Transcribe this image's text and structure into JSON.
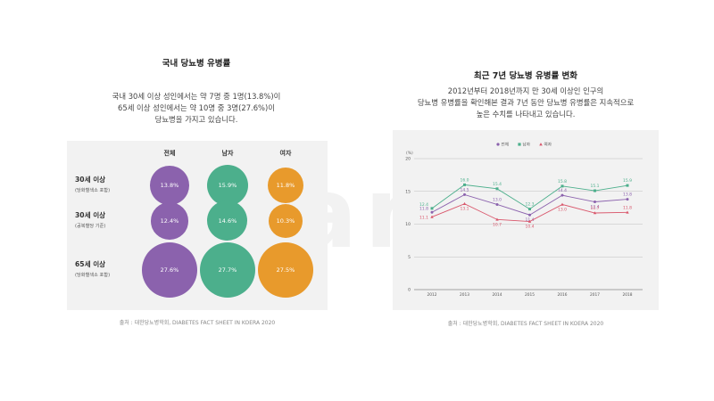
{
  "left": {
    "title": "국내 당뇨병 유병률",
    "desc": [
      "국내 30세 이상 성인에서는 약 7명 중 1명(13.8%)이",
      "65세 이상 성인에서는 약 10명 중 3명(27.6%)이",
      "당뇨병을 가지고 있습니다."
    ],
    "source": "출처 : 대한당뇨병학회, DIABETES FACT SHEET IN KOERA 2020"
  },
  "right": {
    "title": "최근 7년 당뇨병 유병률 변화",
    "desc": [
      "2012년부터 2018년까지 만 30세 이상인 인구의",
      "당뇨병 유병률을 확인해본 결과 7년 동안 당뇨병 유병률은 지속적으로",
      "높은 수치를 나타내고 있습니다."
    ],
    "source": "출처 : 대한당뇨병학회, DIABETES FACT SHEET IN KOERA 2020"
  },
  "watermark": "Fitamin",
  "colors": {
    "purple": "#8b62ad",
    "green": "#4caf8c",
    "orange": "#e89a2c",
    "red": "#d9566b"
  },
  "chart_data": [
    {
      "type": "bubble",
      "columns": [
        "전체",
        "남자",
        "여자"
      ],
      "rows": [
        {
          "label": "30세 이상",
          "sub": "(당화혈색소 포함)",
          "values": [
            13.8,
            15.9,
            11.8
          ]
        },
        {
          "label": "30세 이상",
          "sub": "(공복혈당 기준)",
          "values": [
            12.4,
            14.6,
            10.3
          ]
        },
        {
          "label": "65세 이상",
          "sub": "(당화혈색소 포함)",
          "values": [
            27.6,
            27.7,
            27.5
          ]
        }
      ],
      "value_labels": [
        [
          "13.8%",
          "15.9%",
          "11.8%"
        ],
        [
          "12.4%",
          "14.6%",
          "10.3%"
        ],
        [
          "27.6%",
          "27.7%",
          "27.5%"
        ]
      ]
    },
    {
      "type": "line",
      "ylabel": "(%)",
      "ylim": [
        0,
        20
      ],
      "yticks": [
        0,
        5,
        10,
        15,
        20
      ],
      "x": [
        "2012",
        "2013",
        "2014",
        "2015",
        "2016",
        "2017",
        "2018"
      ],
      "series": [
        {
          "name": "전체",
          "color": "#8b62ad",
          "marker": "circle",
          "values": [
            11.8,
            14.5,
            13.0,
            11.4,
            14.4,
            13.4,
            13.8
          ]
        },
        {
          "name": "남자",
          "color": "#4caf8c",
          "marker": "square",
          "values": [
            12.4,
            16.0,
            15.4,
            12.3,
            15.8,
            15.1,
            15.9
          ]
        },
        {
          "name": "여자",
          "color": "#d9566b",
          "marker": "triangle",
          "values": [
            11.1,
            13.1,
            10.7,
            10.4,
            13.0,
            11.7,
            11.8
          ]
        }
      ]
    }
  ]
}
